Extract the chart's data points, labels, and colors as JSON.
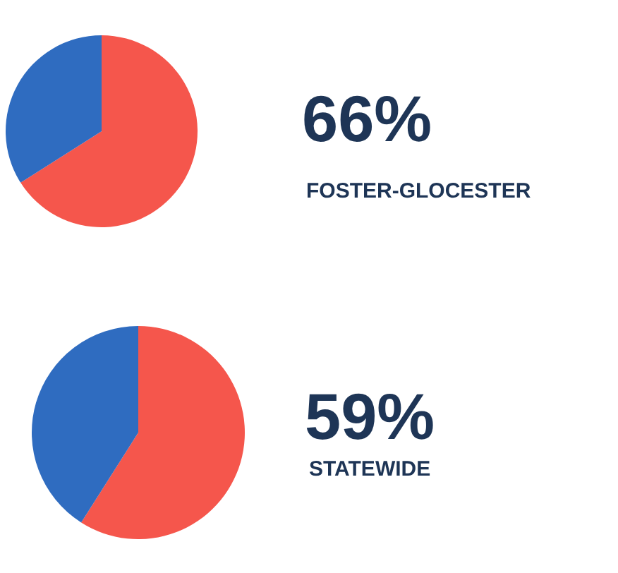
{
  "chart_data": [
    {
      "type": "pie",
      "title": "FOSTER-GLOCESTER",
      "categories": [
        null,
        null
      ],
      "values": [
        66,
        34
      ],
      "colors": [
        "#f5564c",
        "#2f6cc0"
      ],
      "value_labels": [
        "66%",
        null
      ]
    },
    {
      "type": "pie",
      "title": "STATEWIDE",
      "categories": [
        null,
        null
      ],
      "values": [
        59,
        41
      ],
      "colors": [
        "#f5564c",
        "#2f6cc0"
      ],
      "value_labels": [
        "59%",
        null
      ]
    }
  ]
}
